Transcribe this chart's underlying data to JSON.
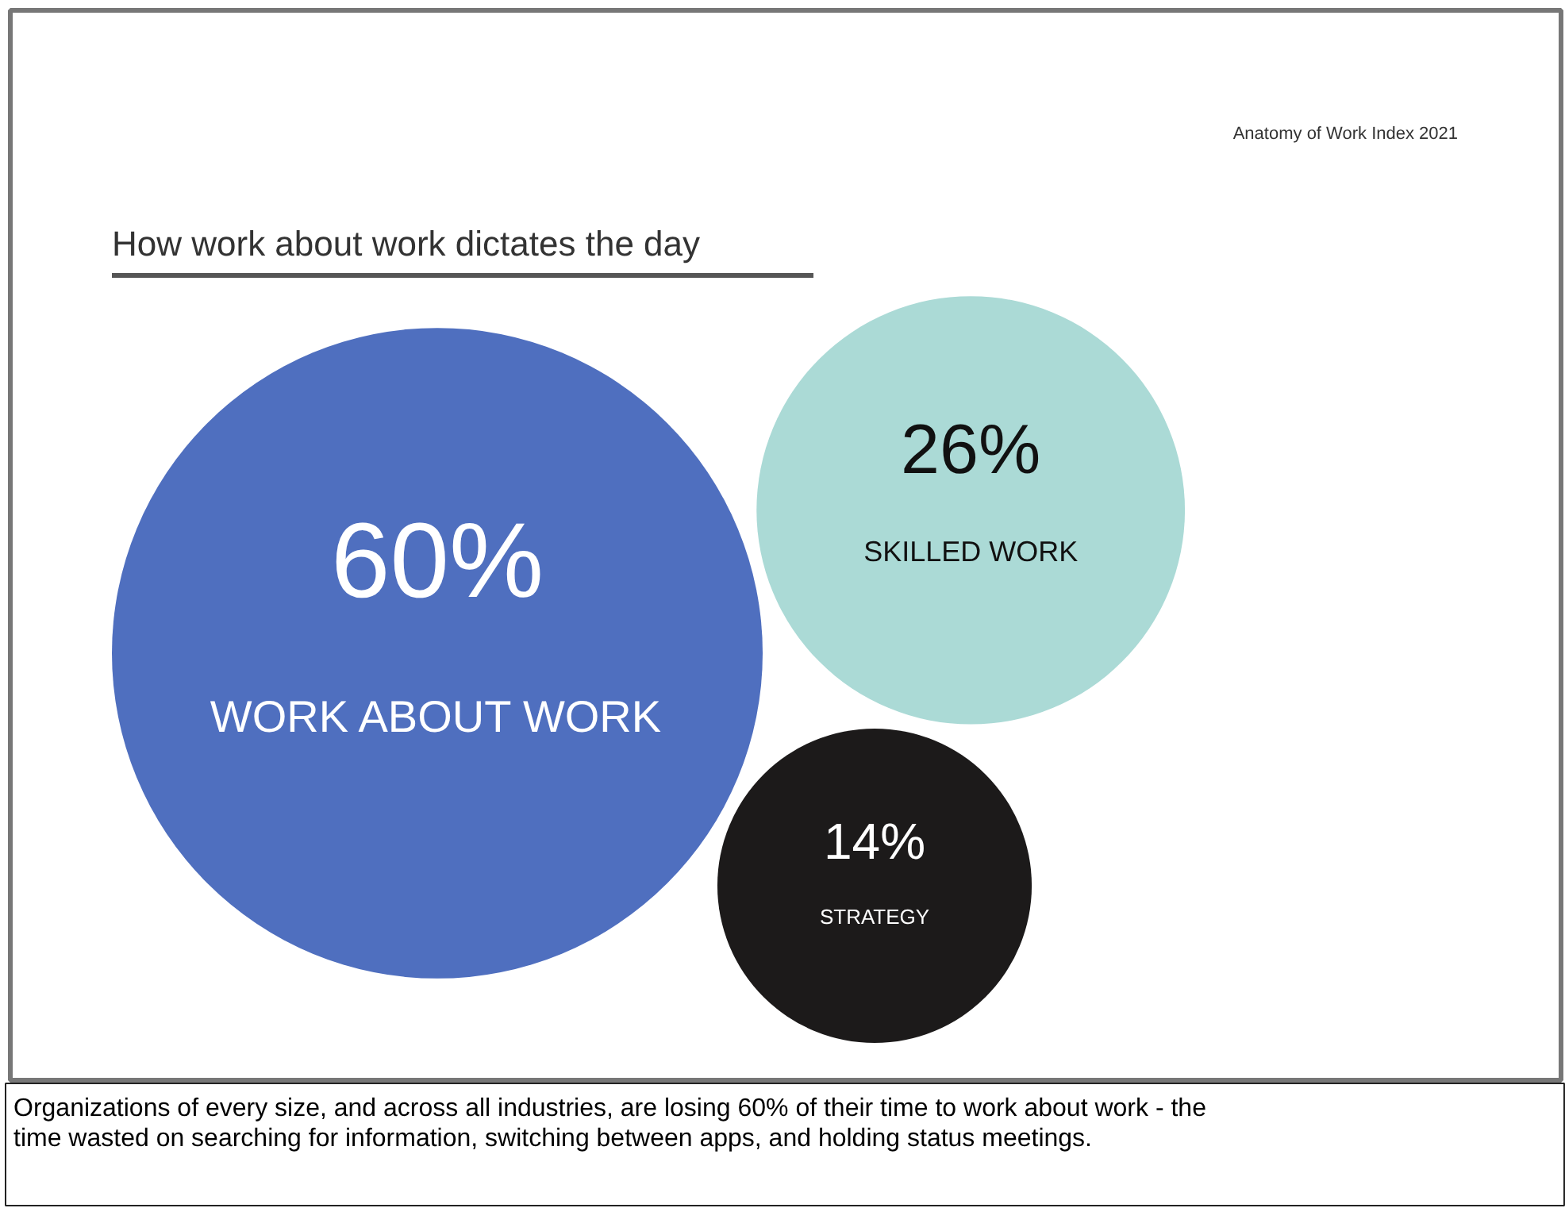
{
  "chart_data": {
    "type": "other",
    "title": "How work about work dictates the day",
    "subtitle": "Anatomy of Work Index 2021",
    "categories": [
      "WORK ABOUT WORK",
      "SKILLED WORK",
      "STRATEGY"
    ],
    "values": [
      60,
      26,
      14
    ],
    "value_labels": [
      "60%",
      "26%",
      "14%"
    ],
    "colors": [
      "#4f6fbf",
      "#abdad6",
      "#1c1a1a"
    ],
    "annotations": [
      "Organizations of every size, and across all industries, are losing 60% of their time to work about work - the time wasted on searching for information, switching between apps, and holding status meetings."
    ]
  }
}
